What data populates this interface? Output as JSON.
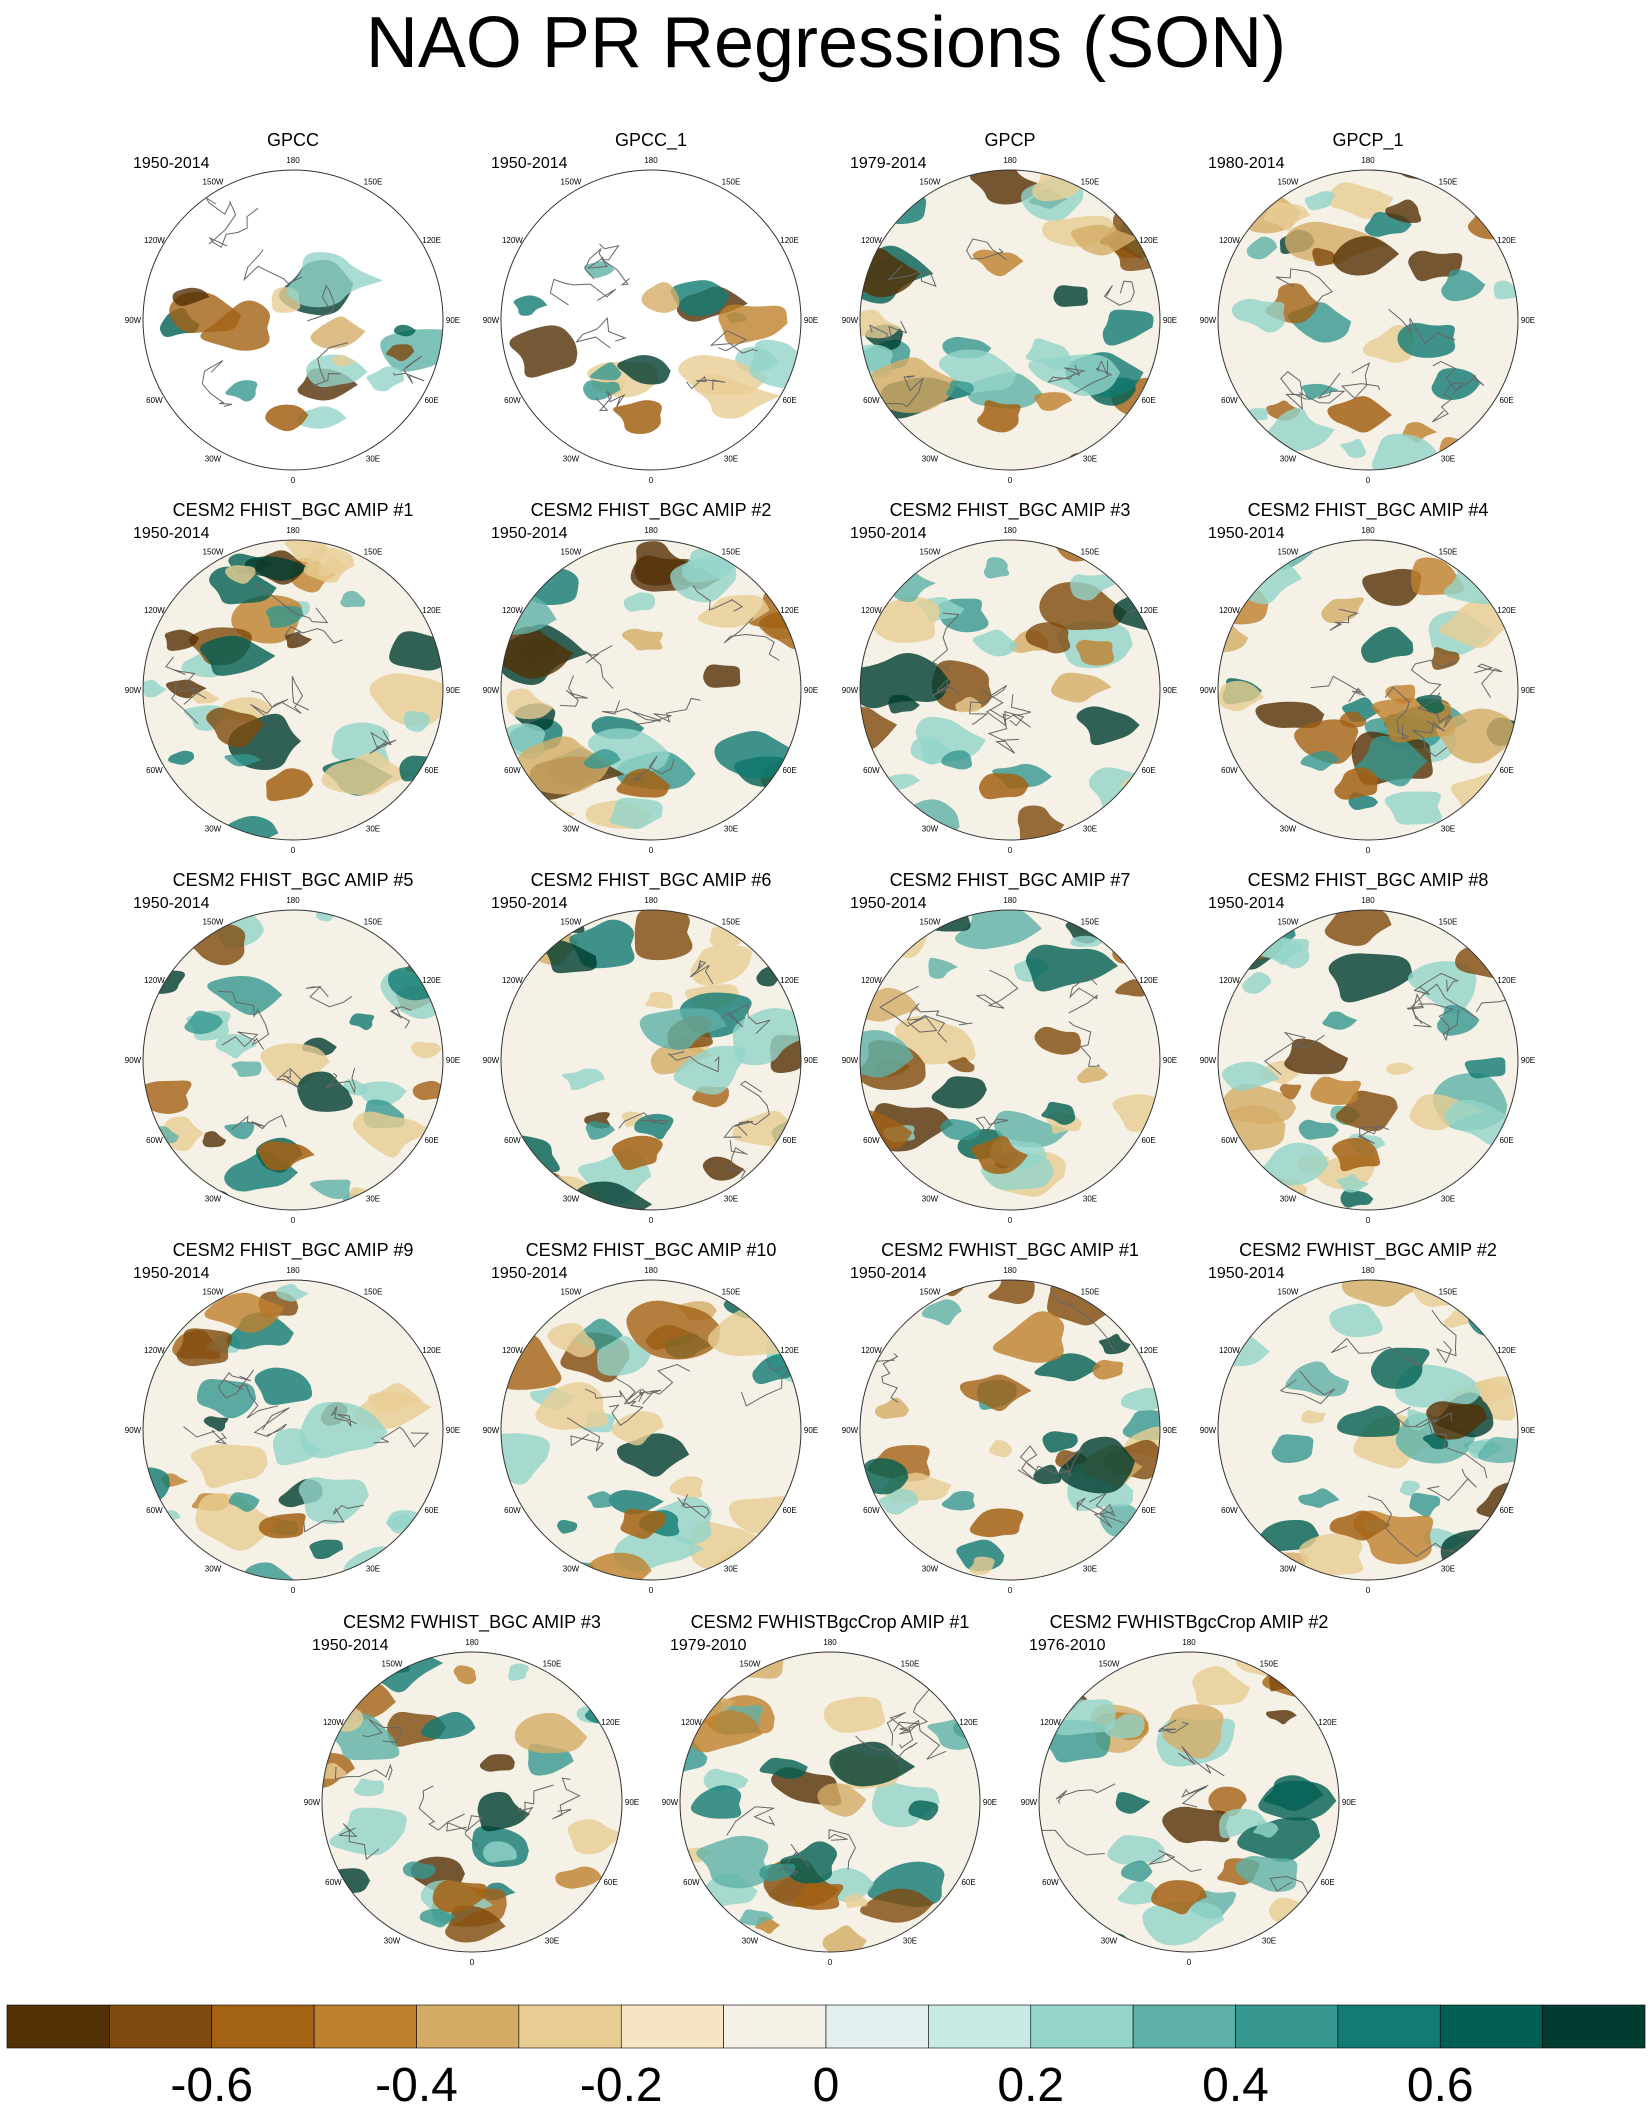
{
  "title": "NAO PR Regressions (SON)",
  "panels": [
    {
      "name": "GPCC",
      "years": "1950-2014",
      "land_only": true
    },
    {
      "name": "GPCC_1",
      "years": "1950-2014",
      "land_only": true
    },
    {
      "name": "GPCP",
      "years": "1979-2014",
      "land_only": false
    },
    {
      "name": "GPCP_1",
      "years": "1980-2014",
      "land_only": false
    },
    {
      "name": "CESM2 FHIST_BGC AMIP #1",
      "years": "1950-2014",
      "land_only": false
    },
    {
      "name": "CESM2 FHIST_BGC AMIP #2",
      "years": "1950-2014",
      "land_only": false
    },
    {
      "name": "CESM2 FHIST_BGC AMIP #3",
      "years": "1950-2014",
      "land_only": false
    },
    {
      "name": "CESM2 FHIST_BGC AMIP #4",
      "years": "1950-2014",
      "land_only": false
    },
    {
      "name": "CESM2 FHIST_BGC AMIP #5",
      "years": "1950-2014",
      "land_only": false
    },
    {
      "name": "CESM2 FHIST_BGC AMIP #6",
      "years": "1950-2014",
      "land_only": false
    },
    {
      "name": "CESM2 FHIST_BGC AMIP #7",
      "years": "1950-2014",
      "land_only": false
    },
    {
      "name": "CESM2 FHIST_BGC AMIP #8",
      "years": "1950-2014",
      "land_only": false
    },
    {
      "name": "CESM2 FHIST_BGC AMIP #9",
      "years": "1950-2014",
      "land_only": false
    },
    {
      "name": "CESM2 FHIST_BGC AMIP #10",
      "years": "1950-2014",
      "land_only": false
    },
    {
      "name": "CESM2 FWHIST_BGC AMIP #1",
      "years": "1950-2014",
      "land_only": false
    },
    {
      "name": "CESM2 FWHIST_BGC AMIP #2",
      "years": "1950-2014",
      "land_only": false
    },
    {
      "name": "CESM2 FWHIST_BGC AMIP #3",
      "years": "1950-2014",
      "land_only": false
    },
    {
      "name": "CESM2 FWHISTBgcCrop AMIP #1",
      "years": "1979-2010",
      "land_only": false
    },
    {
      "name": "CESM2 FWHISTBgcCrop AMIP #2",
      "years": "1976-2010",
      "land_only": false
    }
  ],
  "lon_labels": [
    "180",
    "150E",
    "120E",
    "90E",
    "60E",
    "30E",
    "0",
    "30W",
    "60W",
    "90W",
    "120W",
    "150W"
  ],
  "colorbar": {
    "colors": [
      "#543005",
      "#7f4a0d",
      "#a36214",
      "#bf812d",
      "#d5ac66",
      "#e8cd93",
      "#f5e5c4",
      "#f5f1e6",
      "#e3efee",
      "#c7eae5",
      "#94d4c9",
      "#5eb1a7",
      "#35978f",
      "#127b73",
      "#015f53",
      "#003c30"
    ],
    "tick_labels": [
      "-0.6",
      "-0.4",
      "-0.2",
      "0",
      "0.2",
      "0.4",
      "0.6"
    ],
    "tick_values": [
      -0.6,
      -0.4,
      -0.2,
      0,
      0.2,
      0.4,
      0.6
    ],
    "range": [
      -0.8,
      0.8
    ]
  }
}
